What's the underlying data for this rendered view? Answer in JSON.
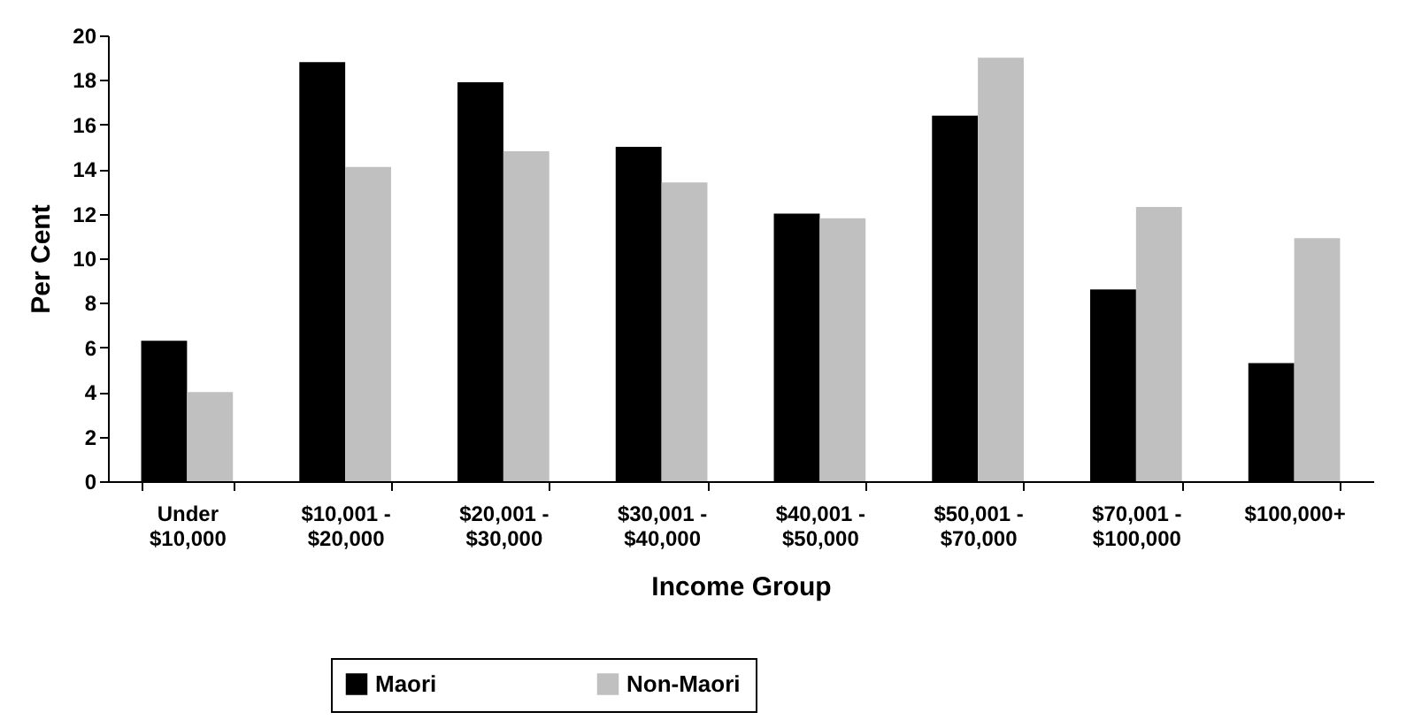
{
  "chart_data": {
    "type": "bar",
    "xlabel": "Income Group",
    "ylabel": "Per Cent",
    "categories": [
      "Under\n$10,000",
      "$10,001 -\n$20,000",
      "$20,001 -\n$30,000",
      "$30,001 -\n$40,000",
      "$40,001 -\n$50,000",
      "$50,001 -\n$70,000",
      "$70,001 -\n$100,000",
      "$100,000+"
    ],
    "series": [
      {
        "name": "Maori",
        "color": "#000000",
        "values": [
          6.3,
          18.8,
          17.9,
          15.0,
          12.0,
          16.4,
          8.6,
          5.3
        ]
      },
      {
        "name": "Non-Maori",
        "color": "#c0c0c0",
        "values": [
          4.0,
          14.1,
          14.8,
          13.4,
          11.8,
          19.0,
          12.3,
          10.9
        ]
      }
    ],
    "ylim": [
      0,
      20
    ],
    "yticks": [
      0,
      2,
      4,
      6,
      8,
      10,
      12,
      14,
      16,
      18,
      20
    ],
    "grid": false,
    "legend": "bottom"
  }
}
